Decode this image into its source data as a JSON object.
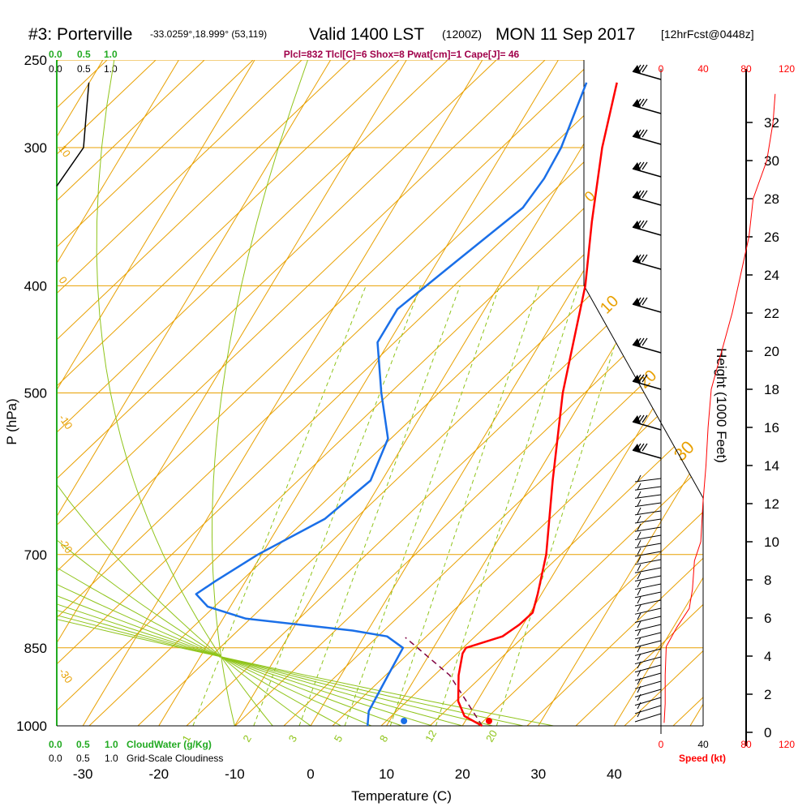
{
  "title": {
    "station": "#3: Porterville",
    "coords": "-33.0259°,18.999° (53,119)",
    "valid": "Valid 1400 LST",
    "utc": "(1200Z)",
    "date": "MON 11 Sep 2017",
    "forecast": "[12hrFcst@0448z]"
  },
  "indices_text": "Plcl=832 Tlcl[C]=6 Shox=8 Pwat[cm]=1 Cape[J]= 46",
  "colors": {
    "temperature": "#ff0000",
    "dewpoint": "#1a6fe8",
    "isotherm_grid": "#e8a000",
    "dry_adiabat": "#e8a000",
    "moist_adiabat": "#8fc41a",
    "mixing_ratio": "#8fc41a",
    "parcel": "#800040",
    "cloud_water": "#22aa22",
    "indices": "#a0004a"
  },
  "chart_data": {
    "type": "skew-t",
    "xlabel": "Temperature (C)",
    "ylabel": "P (hPa)",
    "x_ticks": [
      "-30",
      "-20",
      "-10",
      "0",
      "10",
      "20",
      "30",
      "40"
    ],
    "x_tick_values": [
      -30,
      -20,
      -10,
      0,
      10,
      20,
      30,
      40
    ],
    "p_ticks": [
      "250",
      "300",
      "400",
      "500",
      "700",
      "850",
      "1000"
    ],
    "p_tick_values": [
      250,
      300,
      400,
      500,
      700,
      850,
      1000
    ],
    "isotherm_labels": [
      "10",
      "0",
      "-10",
      "-20",
      "-30"
    ],
    "dry_adiabat_labels": [
      "0",
      "10",
      "20",
      "30"
    ],
    "mixing_ratio_labels": [
      "1",
      "2",
      "3",
      "5",
      "8",
      "12",
      "20"
    ],
    "temperature_profile": [
      {
        "p": 1000,
        "t": 22.6
      },
      {
        "p": 980,
        "t": 19.5
      },
      {
        "p": 950,
        "t": 17.5
      },
      {
        "p": 900,
        "t": 15.5
      },
      {
        "p": 860,
        "t": 14.3
      },
      {
        "p": 850,
        "t": 14.3
      },
      {
        "p": 830,
        "t": 18.2
      },
      {
        "p": 810,
        "t": 19.5
      },
      {
        "p": 790,
        "t": 20.3
      },
      {
        "p": 760,
        "t": 19.5
      },
      {
        "p": 700,
        "t": 17.5
      },
      {
        "p": 600,
        "t": 12.5
      },
      {
        "p": 500,
        "t": 6.9
      },
      {
        "p": 400,
        "t": 1.4
      },
      {
        "p": 350,
        "t": -2.8
      },
      {
        "p": 300,
        "t": -7.3
      },
      {
        "p": 262,
        "t": -10.5
      }
    ],
    "dewpoint_profile": [
      {
        "p": 1000,
        "t": 7.5
      },
      {
        "p": 970,
        "t": 6.5
      },
      {
        "p": 900,
        "t": 6.2
      },
      {
        "p": 850,
        "t": 6.0
      },
      {
        "p": 830,
        "t": 3.0
      },
      {
        "p": 820,
        "t": -2.0
      },
      {
        "p": 800,
        "t": -17.0
      },
      {
        "p": 780,
        "t": -23.0
      },
      {
        "p": 760,
        "t": -25.5
      },
      {
        "p": 740,
        "t": -24.0
      },
      {
        "p": 700,
        "t": -20.5
      },
      {
        "p": 650,
        "t": -14.5
      },
      {
        "p": 600,
        "t": -11.5
      },
      {
        "p": 550,
        "t": -12.5
      },
      {
        "p": 500,
        "t": -17.0
      },
      {
        "p": 450,
        "t": -21.5
      },
      {
        "p": 420,
        "t": -21.5
      },
      {
        "p": 380,
        "t": -17.5
      },
      {
        "p": 340,
        "t": -13.0
      },
      {
        "p": 320,
        "t": -12.5
      },
      {
        "p": 300,
        "t": -12.7
      },
      {
        "p": 262,
        "t": -14.5
      }
    ],
    "parcel_path": [
      {
        "p": 1000,
        "t": 22.6
      },
      {
        "p": 832,
        "t": 5.5
      }
    ],
    "surface_temperature": 23.5,
    "surface_dewpoint": 12.3,
    "height_axis": {
      "label": "Height (1000 Feet)",
      "ticks": [
        "0",
        "2",
        "4",
        "6",
        "8",
        "10",
        "12",
        "14",
        "16",
        "18",
        "20",
        "22",
        "24",
        "26",
        "28",
        "30",
        "32"
      ],
      "min": 0,
      "max": 34
    },
    "wind_speed_axis": {
      "label": "Speed (kt)",
      "ticks": [
        "0",
        "40",
        "80",
        "120"
      ],
      "max": 120
    },
    "wind_speed_profile": [
      {
        "h": 0.5,
        "s": 3
      },
      {
        "h": 1.5,
        "s": 4
      },
      {
        "h": 3,
        "s": 4
      },
      {
        "h": 4.5,
        "s": 5
      },
      {
        "h": 5.5,
        "s": 15
      },
      {
        "h": 6.5,
        "s": 27
      },
      {
        "h": 7.5,
        "s": 30
      },
      {
        "h": 9,
        "s": 32
      },
      {
        "h": 10,
        "s": 38
      },
      {
        "h": 12,
        "s": 40
      },
      {
        "h": 14,
        "s": 43
      },
      {
        "h": 16,
        "s": 45
      },
      {
        "h": 18,
        "s": 48
      },
      {
        "h": 20,
        "s": 58
      },
      {
        "h": 22,
        "s": 68
      },
      {
        "h": 24,
        "s": 76
      },
      {
        "h": 26,
        "s": 84
      },
      {
        "h": 28,
        "s": 88
      },
      {
        "h": 30,
        "s": 101
      },
      {
        "h": 32,
        "s": 107
      },
      {
        "h": 33.5,
        "s": 109
      }
    ],
    "cloud_water": {
      "label": "CloudWater (g/Kg)",
      "ticks": [
        "0.0",
        "0.5",
        "1.0"
      ]
    },
    "cloudiness": {
      "label": "Grid-Scale Cloudiness",
      "ticks": [
        "0.0",
        "0.5",
        "1.0"
      ],
      "profile": [
        {
          "p": 325,
          "v": 0.0
        },
        {
          "p": 300,
          "v": 0.5
        },
        {
          "p": 280,
          "v": 0.55
        },
        {
          "p": 262,
          "v": 0.6
        }
      ]
    }
  }
}
